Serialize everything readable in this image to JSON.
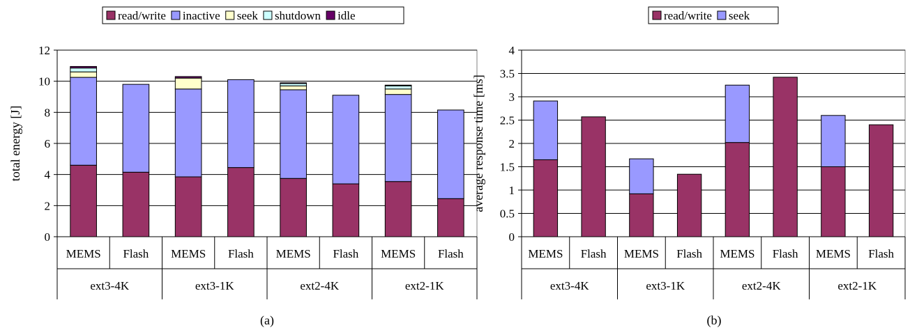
{
  "chart_data": [
    {
      "type": "bar",
      "stacked": true,
      "caption": "(a)",
      "ylabel": "total energy [J]",
      "ylim": [
        0,
        12
      ],
      "yticks": [
        0,
        2,
        4,
        6,
        8,
        10,
        12
      ],
      "grid": true,
      "legend_position": "top",
      "categories": [
        {
          "group": "ext3-4K",
          "label": "MEMS"
        },
        {
          "group": "ext3-4K",
          "label": "Flash"
        },
        {
          "group": "ext3-1K",
          "label": "MEMS"
        },
        {
          "group": "ext3-1K",
          "label": "Flash"
        },
        {
          "group": "ext2-4K",
          "label": "MEMS"
        },
        {
          "group": "ext2-4K",
          "label": "Flash"
        },
        {
          "group": "ext2-1K",
          "label": "MEMS"
        },
        {
          "group": "ext2-1K",
          "label": "Flash"
        }
      ],
      "groups": [
        "ext3-4K",
        "ext3-1K",
        "ext2-4K",
        "ext2-1K"
      ],
      "series": [
        {
          "name": "read/write",
          "color": "#993366",
          "values": [
            4.6,
            4.15,
            3.85,
            4.45,
            3.75,
            3.4,
            3.55,
            2.45
          ]
        },
        {
          "name": "inactive",
          "color": "#9999ff",
          "values": [
            5.65,
            5.65,
            5.65,
            5.65,
            5.7,
            5.7,
            5.6,
            5.7
          ]
        },
        {
          "name": "seek",
          "color": "#ffffcc",
          "values": [
            0.35,
            0,
            0.7,
            0,
            0.25,
            0,
            0.35,
            0
          ]
        },
        {
          "name": "shutdown",
          "color": "#ccffff",
          "values": [
            0.25,
            0,
            0.0,
            0,
            0.15,
            0,
            0.2,
            0
          ]
        },
        {
          "name": "idle",
          "color": "#660066",
          "values": [
            0.1,
            0,
            0.1,
            0,
            0.05,
            0,
            0.05,
            0
          ]
        }
      ]
    },
    {
      "type": "bar",
      "stacked": true,
      "caption": "(b)",
      "ylabel": "average response time [ms]",
      "ylim": [
        0,
        4
      ],
      "yticks": [
        0,
        0.5,
        1,
        1.5,
        2,
        2.5,
        3,
        3.5,
        4
      ],
      "grid": true,
      "legend_position": "top",
      "categories": [
        {
          "group": "ext3-4K",
          "label": "MEMS"
        },
        {
          "group": "ext3-4K",
          "label": "Flash"
        },
        {
          "group": "ext3-1K",
          "label": "MEMS"
        },
        {
          "group": "ext3-1K",
          "label": "Flash"
        },
        {
          "group": "ext2-4K",
          "label": "MEMS"
        },
        {
          "group": "ext2-4K",
          "label": "Flash"
        },
        {
          "group": "ext2-1K",
          "label": "MEMS"
        },
        {
          "group": "ext2-1K",
          "label": "Flash"
        }
      ],
      "groups": [
        "ext3-4K",
        "ext3-1K",
        "ext2-4K",
        "ext2-1K"
      ],
      "series": [
        {
          "name": "read/write",
          "color": "#993366",
          "values": [
            1.65,
            2.57,
            0.92,
            1.34,
            2.02,
            3.42,
            1.5,
            2.4
          ]
        },
        {
          "name": "seek",
          "color": "#9999ff",
          "values": [
            1.26,
            0,
            0.75,
            0,
            1.23,
            0,
            1.1,
            0
          ]
        }
      ]
    }
  ]
}
